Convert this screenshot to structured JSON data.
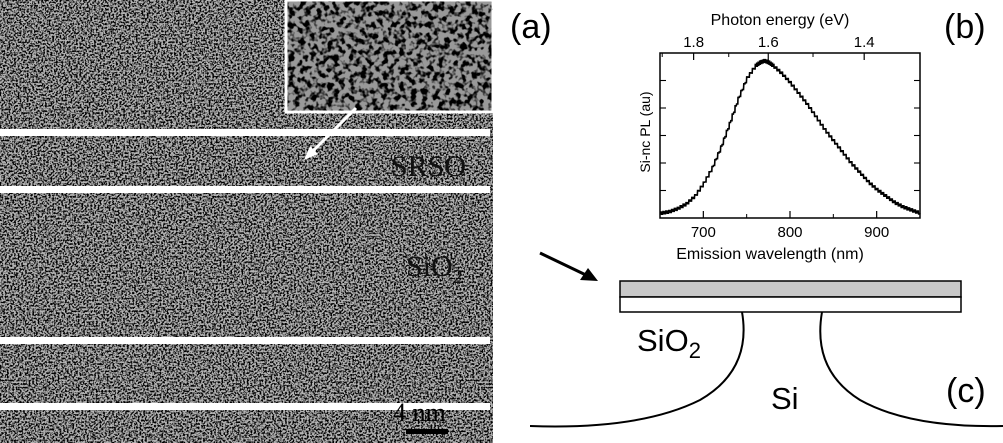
{
  "panels": {
    "a": "(a)",
    "b": "(b)",
    "c": "(c)"
  },
  "tem_image": {
    "layer_labels": {
      "srso": "SRSO",
      "sio2_base": "SiO",
      "sio2_sub": "2"
    },
    "scale_bar": "4 nm"
  },
  "schematic": {
    "labels": {
      "sio2_base": "SiO",
      "sio2_sub": "2",
      "si": "Si"
    },
    "colors": {
      "top_layer": "#c8c8c8",
      "bottom_layer": "#ffffff"
    }
  },
  "chart_data": {
    "type": "line",
    "xlabel": "Emission wavelength (nm)",
    "x2label": "Photon energy (eV)",
    "ylabel": "Si-nc PL (au)",
    "xlim": [
      650,
      950
    ],
    "ylim": [
      0,
      1.05
    ],
    "xticks": [
      700,
      800,
      900
    ],
    "x2ticks": [
      1.8,
      1.6,
      1.4
    ],
    "y_ticks_labeled": false,
    "series": [
      {
        "x": [
          650,
          660,
          670,
          680,
          690,
          700,
          710,
          720,
          730,
          740,
          750,
          760,
          765,
          770,
          775,
          780,
          790,
          800,
          810,
          820,
          830,
          840,
          850,
          860,
          870,
          880,
          890,
          900,
          910,
          920,
          930,
          940,
          950
        ],
        "values": [
          0.03,
          0.04,
          0.06,
          0.09,
          0.14,
          0.22,
          0.32,
          0.45,
          0.6,
          0.76,
          0.89,
          0.97,
          0.99,
          1.0,
          0.99,
          0.97,
          0.92,
          0.86,
          0.79,
          0.72,
          0.64,
          0.56,
          0.49,
          0.42,
          0.35,
          0.29,
          0.23,
          0.18,
          0.14,
          0.1,
          0.07,
          0.05,
          0.03
        ]
      }
    ]
  }
}
